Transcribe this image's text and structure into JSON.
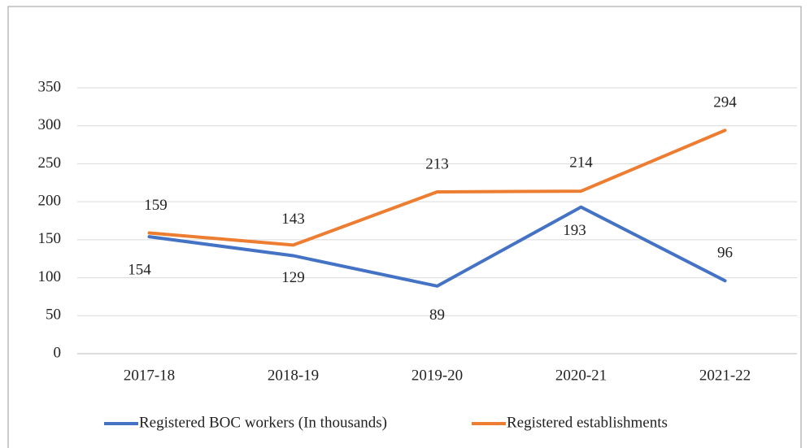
{
  "chart_data": {
    "type": "line",
    "categories": [
      "2017-18",
      "2018-19",
      "2019-20",
      "2020-21",
      "2021-22"
    ],
    "series": [
      {
        "name": "Registered BOC workers (In thousands)",
        "color": "#4472c4",
        "values": [
          154,
          129,
          89,
          193,
          96
        ]
      },
      {
        "name": "Registered establishments",
        "color": "#ed7d31",
        "values": [
          159,
          143,
          213,
          214,
          294
        ]
      }
    ],
    "ylim": [
      0,
      350
    ],
    "yticks": [
      0,
      50,
      100,
      150,
      200,
      250,
      300,
      350
    ],
    "grid": true,
    "legend": "bottom"
  }
}
